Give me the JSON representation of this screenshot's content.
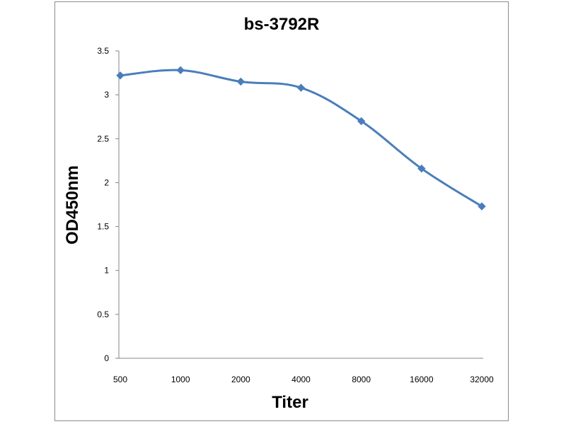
{
  "colors": {
    "series": "#4a7ebb",
    "axis": "#868686",
    "frame": "#8c8c8c"
  },
  "chart_data": {
    "type": "line",
    "title": "bs-3792R",
    "xlabel": "Titer",
    "ylabel": "OD450nm",
    "categories": [
      "500",
      "1000",
      "2000",
      "4000",
      "8000",
      "16000",
      "32000"
    ],
    "series": [
      {
        "values": [
          3.22,
          3.28,
          3.15,
          3.08,
          2.7,
          2.16,
          1.73
        ]
      }
    ],
    "ylim": [
      0,
      3.5
    ],
    "yticks": [
      "0",
      "0.5",
      "1",
      "1.5",
      "2",
      "2.5",
      "3",
      "3.5"
    ],
    "grid": false,
    "legend": "none",
    "marker": "diamond",
    "smooth": true
  }
}
